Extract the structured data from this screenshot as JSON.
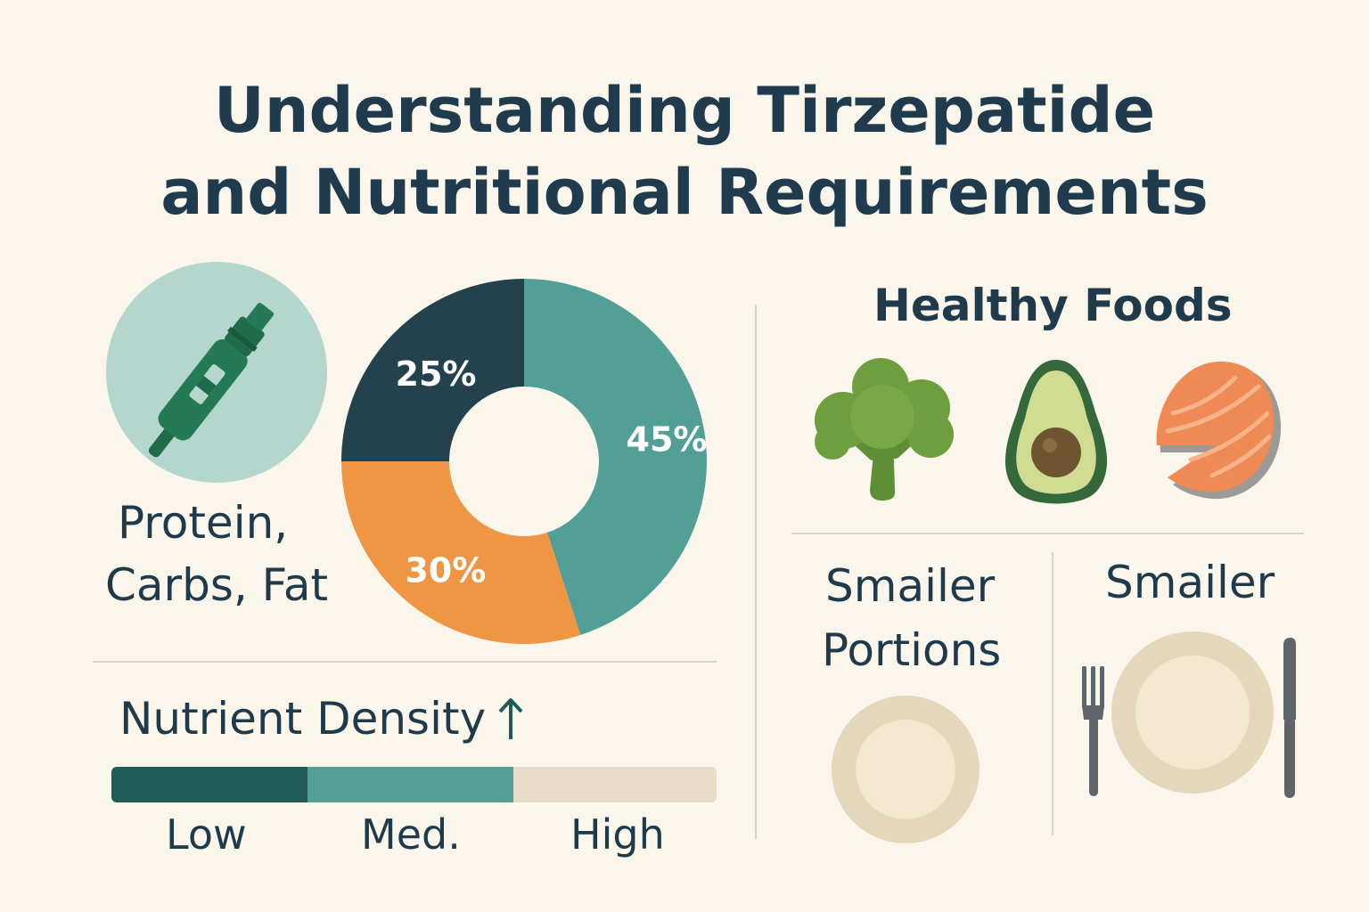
{
  "title": {
    "line1": "Understanding Tirzepatide",
    "line2": "and Nutritional Requirements"
  },
  "macros": {
    "label_line1": "Protein,",
    "label_line2": "Carbs, Fat",
    "icon": "syringe-pen-icon"
  },
  "chart_data": {
    "type": "pie",
    "subtype": "donut",
    "categories": [
      "",
      "",
      ""
    ],
    "values": [
      45,
      30,
      25
    ],
    "labels": [
      "45%",
      "30%",
      "25%"
    ],
    "colors": [
      "#52a095",
      "#ef9645",
      "#23424d"
    ]
  },
  "nutrient_density": {
    "label": "Nutrient Density",
    "arrow_icon": "up-arrow-icon",
    "levels": [
      "Low",
      "Med.",
      "High"
    ],
    "colors": [
      "#1f5c55",
      "#52a095",
      "#e8dcc8"
    ]
  },
  "healthy_foods": {
    "heading": "Healthy Foods",
    "icons": [
      "broccoli-icon",
      "avocado-icon",
      "salmon-icon"
    ]
  },
  "portions": {
    "left_line1": "Smailer",
    "left_line2": "Portions",
    "right_line1": "Smailer",
    "icons": [
      "small-plate-icon",
      "fork-icon",
      "large-plate-icon",
      "knife-icon"
    ]
  }
}
